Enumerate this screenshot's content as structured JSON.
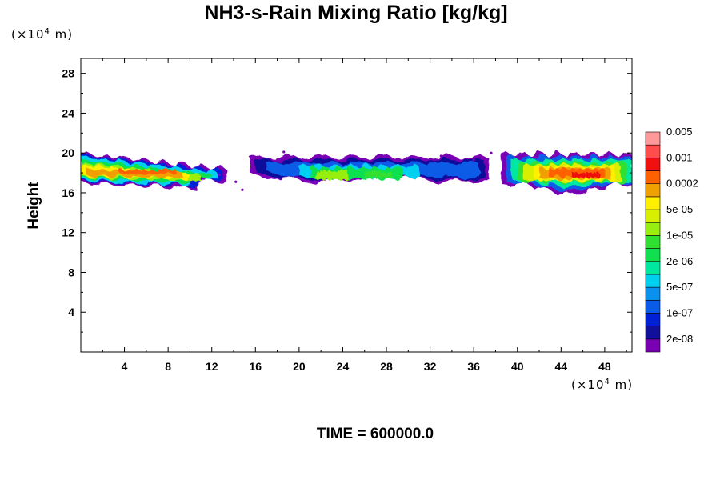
{
  "chart_data": {
    "type": "heatmap",
    "title": "NH3-s-Rain Mixing Ratio [kg/kg]",
    "ylabel": "Height",
    "xlabel": "",
    "x_unit": "(×10",
    "x_unit_exp": "4",
    "x_unit_tail": " m)",
    "y_unit": "(×10",
    "y_unit_exp": "4",
    "y_unit_tail": " m)",
    "xlim": [
      0,
      50.5
    ],
    "ylim": [
      0,
      29.5
    ],
    "x_ticks": [
      4,
      8,
      12,
      16,
      20,
      24,
      28,
      32,
      36,
      40,
      44,
      48
    ],
    "y_ticks": [
      4,
      8,
      12,
      16,
      20,
      24,
      28
    ],
    "colorbar": {
      "colors": [
        "#7a00b4",
        "#10109a",
        "#0020d8",
        "#0a5ce8",
        "#0a90ee",
        "#00d0f0",
        "#00e8a0",
        "#10e050",
        "#30e030",
        "#98ee10",
        "#d8f000",
        "#fff000",
        "#f0a000",
        "#ff6000",
        "#f01010",
        "#ff4c4c",
        "#ff9898"
      ],
      "labels": [
        "2e-08",
        "1e-07",
        "5e-07",
        "2e-06",
        "1e-05",
        "5e-05",
        "0.0002",
        "0.001",
        "0.005"
      ]
    },
    "regions": [
      {
        "name": "left-band",
        "x": [
          0,
          13.5
        ],
        "y": [
          16.3,
          20.5
        ],
        "max_level": "0.001"
      },
      {
        "name": "middle-band",
        "x": [
          15.5,
          37.5
        ],
        "y": [
          16.5,
          19.7
        ],
        "max_level": "5e-05"
      },
      {
        "name": "right-band",
        "x": [
          38.5,
          50.5
        ],
        "y": [
          16.0,
          20.0
        ],
        "max_level": "0.005"
      }
    ]
  },
  "footer": {
    "time": "TIME = 600000.0"
  }
}
